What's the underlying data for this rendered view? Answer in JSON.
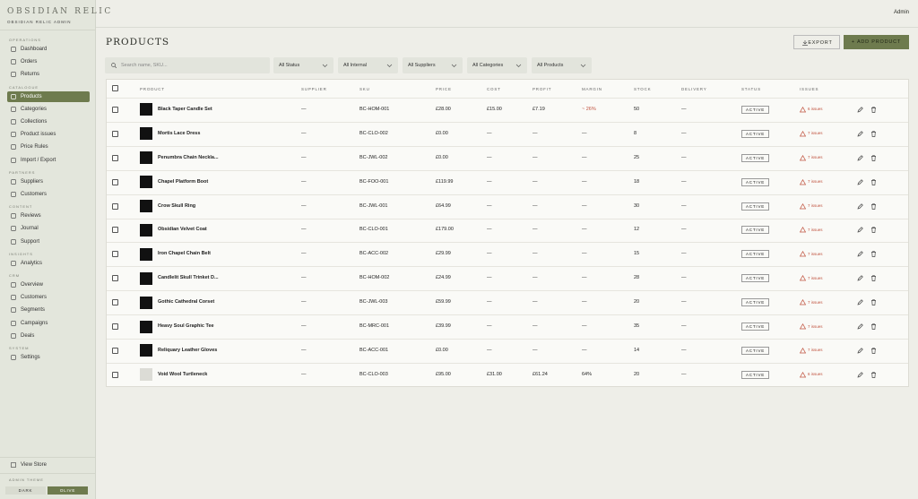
{
  "topbar": {
    "user": "Admin"
  },
  "sidebar": {
    "brand": "OBSIDIAN RELIC",
    "subtitle": "OBSIDIAN RELIC ADMIN",
    "sections": [
      {
        "label": "OPERATIONS",
        "items": [
          "Dashboard",
          "Orders",
          "Returns"
        ]
      },
      {
        "label": "CATALOGUE",
        "items": [
          "Products",
          "Categories",
          "Collections",
          "Product issues",
          "Price Rules",
          "Import / Export"
        ]
      },
      {
        "label": "PARTNERS",
        "items": [
          "Suppliers",
          "Customers"
        ]
      },
      {
        "label": "CONTENT",
        "items": [
          "Reviews",
          "Journal",
          "Support"
        ]
      },
      {
        "label": "INSIGHTS",
        "items": [
          "Analytics"
        ]
      },
      {
        "label": "CRM",
        "items": [
          "Overview",
          "Customers",
          "Segments",
          "Campaigns",
          "Deals"
        ]
      },
      {
        "label": "SYSTEM",
        "items": [
          "Settings"
        ]
      }
    ],
    "footer": {
      "view_store": "View Store",
      "theme_label": "ADMIN THEME",
      "themes": [
        "DARK",
        "OLIVE"
      ]
    }
  },
  "header": {
    "title": "PRODUCTS",
    "export": "EXPORT",
    "add": "+ ADD PRODUCT"
  },
  "filters": {
    "search": "Search name, SKU...",
    "selects": [
      "All Status",
      "All Internal",
      "All Suppliers",
      "All Categories",
      "All Products"
    ]
  },
  "table": {
    "columns": [
      "PRODUCT",
      "SUPPLIER",
      "SKU",
      "PRICE",
      "COST",
      "PROFIT",
      "MARGIN",
      "STOCK",
      "DELIVERY",
      "STATUS",
      "ISSUES"
    ],
    "rows": [
      [
        "Black Taper Candle Set",
        "—",
        "BC-HOM-001",
        "£28.00",
        "£15.00",
        "£7.19",
        "~ 26%",
        "50",
        "—",
        "ACTIVE",
        "6 issues"
      ],
      [
        "Mortis Lace Dress",
        "—",
        "BC-CLO-002",
        "£0.00",
        "—",
        "—",
        "—",
        "8",
        "—",
        "ACTIVE",
        "7 issues"
      ],
      [
        "Penumbra Chain Neckla...",
        "—",
        "BC-JWL-002",
        "£0.00",
        "—",
        "—",
        "—",
        "25",
        "—",
        "ACTIVE",
        "7 issues"
      ],
      [
        "Chapel Platform Boot",
        "—",
        "BC-FOO-001",
        "£119.99",
        "—",
        "—",
        "—",
        "18",
        "—",
        "ACTIVE",
        "7 issues"
      ],
      [
        "Crow Skull Ring",
        "—",
        "BC-JWL-001",
        "£64.99",
        "—",
        "—",
        "—",
        "30",
        "—",
        "ACTIVE",
        "7 issues"
      ],
      [
        "Obsidian Velvet Coat",
        "—",
        "BC-CLO-001",
        "£179.00",
        "—",
        "—",
        "—",
        "12",
        "—",
        "ACTIVE",
        "7 issues"
      ],
      [
        "Iron Chapel Chain Belt",
        "—",
        "BC-ACC-002",
        "£29.99",
        "—",
        "—",
        "—",
        "15",
        "—",
        "ACTIVE",
        "7 issues"
      ],
      [
        "Candlelit Skull Trinket D...",
        "—",
        "BC-HOM-002",
        "£24.99",
        "—",
        "—",
        "—",
        "28",
        "—",
        "ACTIVE",
        "7 issues"
      ],
      [
        "Gothic Cathedral Corset",
        "—",
        "BC-JWL-003",
        "£59.99",
        "—",
        "—",
        "—",
        "20",
        "—",
        "ACTIVE",
        "7 issues"
      ],
      [
        "Heavy Soul Graphic Tee",
        "—",
        "BC-MRC-001",
        "£39.99",
        "—",
        "—",
        "—",
        "35",
        "—",
        "ACTIVE",
        "7 issues"
      ],
      [
        "Reliquary Leather Gloves",
        "—",
        "BC-ACC-001",
        "£0.00",
        "—",
        "—",
        "—",
        "14",
        "—",
        "ACTIVE",
        "7 issues"
      ],
      [
        "Void Wool Turtleneck",
        "—",
        "BC-CLO-003",
        "£95.00",
        "£31.00",
        "£61.24",
        "64%",
        "20",
        "—",
        "ACTIVE",
        "6 issues"
      ]
    ]
  }
}
